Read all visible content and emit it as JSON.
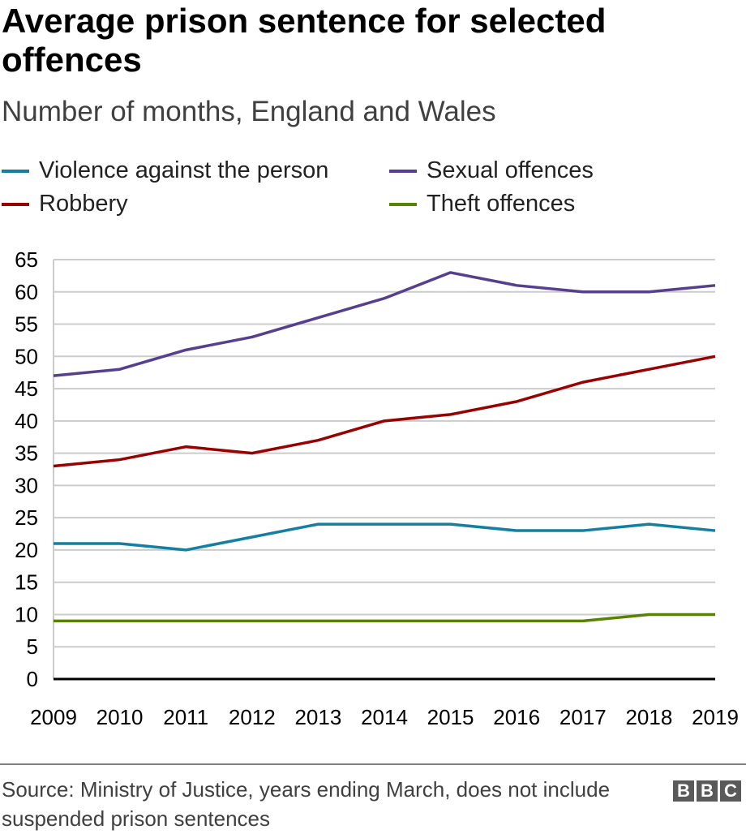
{
  "chart_data": {
    "type": "line",
    "title": "Average prison sentence for selected offences",
    "subtitle": "Number of months, England and Wales",
    "xlabel": "",
    "ylabel": "",
    "x": [
      "2009",
      "2010",
      "2011",
      "2012",
      "2013",
      "2014",
      "2015",
      "2016",
      "2017",
      "2018",
      "2019"
    ],
    "ylim": [
      0,
      65
    ],
    "yticks": [
      0,
      5,
      10,
      15,
      20,
      25,
      30,
      35,
      40,
      45,
      50,
      55,
      60,
      65
    ],
    "grid": true,
    "legend_position": "top",
    "series": [
      {
        "name": "Violence against the person",
        "color": "#1380a1",
        "values": [
          21,
          21,
          20,
          22,
          24,
          24,
          24,
          23,
          23,
          24,
          23
        ]
      },
      {
        "name": "Sexual offences",
        "color": "#573f8f",
        "values": [
          47,
          48,
          51,
          53,
          56,
          59,
          63,
          61,
          60,
          60,
          61
        ]
      },
      {
        "name": "Robbery",
        "color": "#990000",
        "values": [
          33,
          34,
          36,
          35,
          37,
          40,
          41,
          43,
          46,
          48,
          50
        ]
      },
      {
        "name": "Theft offences",
        "color": "#588300",
        "values": [
          9,
          9,
          9,
          9,
          9,
          9,
          9,
          9,
          9,
          10,
          10
        ]
      }
    ]
  },
  "footer": {
    "source": "Source: Ministry of Justice, years ending March, does not include suspended prison sentences",
    "logo_letters": [
      "B",
      "B",
      "C"
    ]
  }
}
